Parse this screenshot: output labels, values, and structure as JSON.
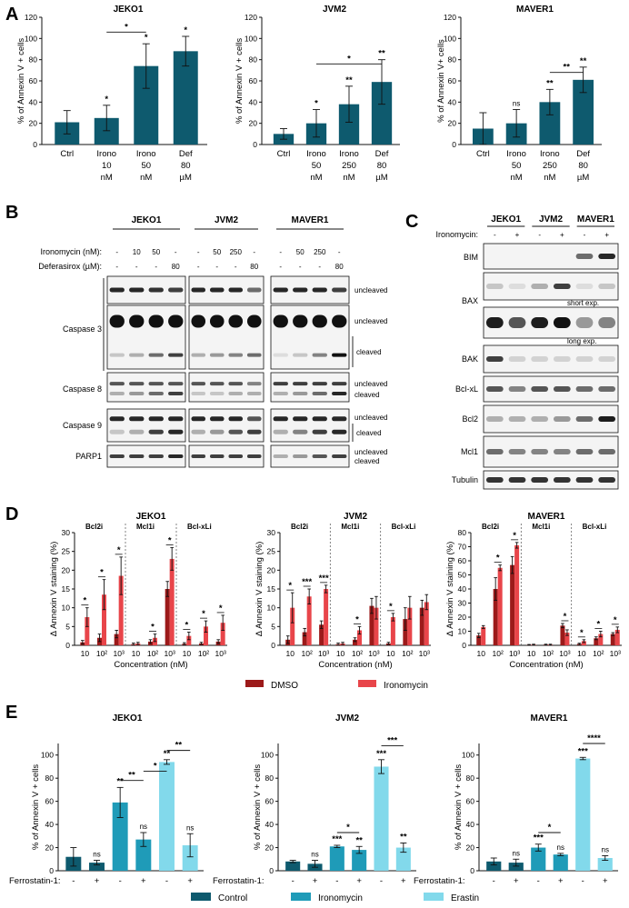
{
  "panels": {
    "A": {
      "letter": "A",
      "ylabel": "% of Annexin V + cells",
      "ylabel_maver": "% of Annexin V+ cells",
      "yticks": [
        "0",
        "20",
        "40",
        "60",
        "80",
        "100",
        "120"
      ],
      "color": "#0e5a6e"
    },
    "B": {
      "letter": "B",
      "lines": [
        "JEKO1",
        "JVM2",
        "MAVER1"
      ],
      "row_ironomycin": "Ironomycin (nM):",
      "row_deferasirox": "Deferasirox (µM):",
      "ironomycin_values": [
        [
          "-",
          "10",
          "50",
          "-"
        ],
        [
          "-",
          "50",
          "250",
          "-"
        ],
        [
          "-",
          "50",
          "250",
          "-"
        ]
      ],
      "deferasirox_values": [
        [
          "-",
          "-",
          "-",
          "80"
        ],
        [
          "-",
          "-",
          "-",
          "80"
        ],
        [
          "-",
          "-",
          "-",
          "80"
        ]
      ],
      "blots": [
        {
          "name": "Caspase 3",
          "labels": [
            "uncleaved",
            "uncleaved",
            "cleaved"
          ]
        },
        {
          "name": "Caspase 8",
          "labels": [
            "uncleaved",
            "cleaved"
          ]
        },
        {
          "name": "Caspase 9",
          "labels": [
            "uncleaved",
            "cleaved"
          ]
        },
        {
          "name": "PARP1",
          "labels": [
            "uncleaved",
            "cleaved"
          ]
        }
      ]
    },
    "C": {
      "letter": "C",
      "lines": [
        "JEKO1",
        "JVM2",
        "MAVER1"
      ],
      "row_ironomycin": "Ironomycin:",
      "signs": [
        "-",
        "+",
        "-",
        "+",
        "-",
        "+"
      ],
      "proteins": [
        "BIM",
        "BAX",
        "BAK",
        "Bcl-xL",
        "Bcl2",
        "Mcl1",
        "Tubulin"
      ],
      "short_exp": "short exp.",
      "long_exp": "long exp."
    },
    "D": {
      "letter": "D",
      "ylabel": "Δ Annexin V staining (%)",
      "xlabel": "Concentration (nM)",
      "groups": [
        "Bcl2i",
        "Mcl1i",
        "Bcl-xLi"
      ],
      "xticks": [
        "10",
        "10²",
        "10³"
      ],
      "legend": [
        {
          "name": "DMSO",
          "color": "#9c1a1a"
        },
        {
          "name": "Ironomycin",
          "color": "#e8454a"
        }
      ]
    },
    "E": {
      "letter": "E",
      "ylabel": "% of Annexin V + cells",
      "ferro_label": "Ferrostatin-1:",
      "signs": [
        "-",
        "+",
        "-",
        "+",
        "-",
        "+"
      ],
      "yticks": [
        "0",
        "20",
        "40",
        "60",
        "80",
        "100"
      ],
      "legend": [
        {
          "name": "Control",
          "color": "#0e5a6e"
        },
        {
          "name": "Ironomycin",
          "color": "#1f9bb8"
        },
        {
          "name": "Erastin",
          "color": "#82d9eb"
        }
      ]
    }
  },
  "chart_data": [
    {
      "type": "bar",
      "panel": "A",
      "title": "JEKO1",
      "categories": [
        "Ctrl",
        "Irono 10 nM",
        "Irono 50 nM",
        "Def 80 µM"
      ],
      "cat_lines": [
        [
          "Ctrl"
        ],
        [
          "Irono",
          "10",
          "nM"
        ],
        [
          "Irono",
          "50",
          "nM"
        ],
        [
          "Def",
          "80",
          "µM"
        ]
      ],
      "values": [
        21,
        25,
        74,
        88
      ],
      "errors": [
        11,
        12,
        21,
        14
      ],
      "sig": [
        "",
        "*",
        "*",
        "*"
      ],
      "brackets": [
        {
          "from": 1,
          "to": 2,
          "label": "*",
          "y": 106
        }
      ],
      "ylim": [
        0,
        120
      ]
    },
    {
      "type": "bar",
      "panel": "A",
      "title": "JVM2",
      "categories": [
        "Ctrl",
        "Irono 50 nM",
        "Irono 250 nM",
        "Def 80 µM"
      ],
      "cat_lines": [
        [
          "Ctrl"
        ],
        [
          "Irono",
          "50",
          "nM"
        ],
        [
          "Irono",
          "250",
          "nM"
        ],
        [
          "Def",
          "80",
          "µM"
        ]
      ],
      "values": [
        10,
        20,
        38,
        59
      ],
      "errors": [
        5,
        13,
        17,
        21
      ],
      "sig": [
        "",
        "*",
        "**",
        "**"
      ],
      "brackets": [
        {
          "from": 1,
          "to": 3,
          "label": "*",
          "y": 76
        }
      ],
      "ylim": [
        0,
        120
      ]
    },
    {
      "type": "bar",
      "panel": "A",
      "title": "MAVER1",
      "categories": [
        "Ctrl",
        "Irono 50 nM",
        "Irono 250 nM",
        "Def 80 µM"
      ],
      "cat_lines": [
        [
          "Ctrl"
        ],
        [
          "Irono",
          "50",
          "nM"
        ],
        [
          "Irono",
          "250",
          "nM"
        ],
        [
          "Def",
          "80",
          "µM"
        ]
      ],
      "values": [
        15,
        20,
        40,
        61
      ],
      "errors": [
        15,
        13,
        12,
        12
      ],
      "sig": [
        "",
        "ns",
        "**",
        "**"
      ],
      "brackets": [
        {
          "from": 2,
          "to": 3,
          "label": "**",
          "y": 68
        }
      ],
      "ylim": [
        0,
        120
      ]
    },
    {
      "type": "bar",
      "panel": "D",
      "title": "JEKO1",
      "yticks": [
        "0",
        "5",
        "10",
        "15",
        "20",
        "25",
        "30"
      ],
      "ylim": [
        0,
        30
      ],
      "series": [
        {
          "name": "DMSO",
          "values": [
            0.8,
            2,
            3,
            0.3,
            1,
            15,
            0.4,
            0.5,
            1
          ]
        },
        {
          "name": "Ironomycin",
          "values": [
            7.5,
            13.5,
            18.5,
            0.5,
            2,
            23,
            2.5,
            5,
            6
          ]
        }
      ],
      "errors": [
        [
          0.5,
          1,
          1,
          0.3,
          0.5,
          2,
          0.3,
          0.3,
          0.5
        ],
        [
          2.5,
          4,
          5,
          0.3,
          1,
          3,
          1,
          1.5,
          2
        ]
      ],
      "sig": [
        "*",
        "*",
        "*",
        "",
        "*",
        "*",
        "*",
        "*",
        "*"
      ]
    },
    {
      "type": "bar",
      "panel": "D",
      "title": "JVM2",
      "yticks": [
        "0",
        "5",
        "10",
        "15",
        "20",
        "25",
        "30"
      ],
      "ylim": [
        0,
        30
      ],
      "series": [
        {
          "name": "DMSO",
          "values": [
            1.5,
            3.5,
            5.5,
            0.3,
            1.5,
            10.5,
            0.5,
            7,
            10
          ]
        },
        {
          "name": "Ironomycin",
          "values": [
            10,
            13,
            15,
            0.5,
            4,
            10,
            7.5,
            10,
            11.5
          ]
        }
      ],
      "errors": [
        [
          1,
          1,
          1,
          0.3,
          0.5,
          2,
          0.3,
          3,
          2
        ],
        [
          4,
          2,
          1,
          0.3,
          1,
          3,
          1,
          3,
          2
        ]
      ],
      "sig": [
        "*",
        "***",
        "***",
        "",
        "*",
        "",
        "*",
        "",
        ""
      ]
    },
    {
      "type": "bar",
      "panel": "D",
      "title": "MAVER1",
      "yticks": [
        "0",
        "10",
        "20",
        "30",
        "40",
        "50",
        "60",
        "70",
        "80"
      ],
      "ylim": [
        0,
        80
      ],
      "series": [
        {
          "name": "DMSO",
          "values": [
            7,
            40,
            57,
            0.3,
            0.5,
            14,
            1,
            5,
            8
          ]
        },
        {
          "name": "Ironomycin",
          "values": [
            13,
            55,
            71,
            0.5,
            0.5,
            9,
            3,
            8,
            11
          ]
        }
      ],
      "errors": [
        [
          1.5,
          8,
          6,
          0.3,
          0.3,
          1.5,
          0.5,
          1,
          1
        ],
        [
          1,
          2,
          2,
          0.3,
          0.3,
          2,
          1,
          2,
          2
        ]
      ],
      "sig": [
        "",
        "*",
        "*",
        "",
        "",
        "*",
        "*",
        "*",
        "*"
      ]
    },
    {
      "type": "bar",
      "panel": "E",
      "title": "JEKO1",
      "values": [
        12,
        7,
        59,
        27,
        94,
        22
      ],
      "errors": [
        8,
        2,
        13,
        6,
        2,
        10
      ],
      "sig": [
        "",
        "ns",
        "**",
        "ns",
        "**",
        "ns"
      ],
      "brackets": [
        {
          "from": 2,
          "to": 3,
          "label": "**",
          "y": 78
        },
        {
          "from": 3,
          "to": 4,
          "label": "*",
          "y": 86
        },
        {
          "from": 4,
          "to": 5,
          "label": "**",
          "y": 104
        }
      ],
      "ylim": [
        0,
        110
      ]
    },
    {
      "type": "bar",
      "panel": "E",
      "title": "JVM2",
      "values": [
        8,
        6,
        21,
        18,
        90,
        20
      ],
      "errors": [
        1,
        3,
        1,
        3,
        6,
        4
      ],
      "sig": [
        "",
        "ns",
        "***",
        "**",
        "***",
        "**"
      ],
      "brackets": [
        {
          "from": 2,
          "to": 3,
          "label": "*",
          "y": 33
        },
        {
          "from": 4,
          "to": 5,
          "label": "***",
          "y": 108
        }
      ],
      "ylim": [
        0,
        110
      ]
    },
    {
      "type": "bar",
      "panel": "E",
      "title": "MAVER1",
      "values": [
        8,
        7,
        20,
        14,
        97,
        11
      ],
      "errors": [
        3,
        3,
        3,
        1,
        1,
        2
      ],
      "sig": [
        "",
        "ns",
        "***",
        "ns",
        "***",
        "ns"
      ],
      "brackets": [
        {
          "from": 2,
          "to": 3,
          "label": "*",
          "y": 33
        },
        {
          "from": 4,
          "to": 5,
          "label": "****",
          "y": 110
        }
      ],
      "ylim": [
        0,
        110
      ]
    }
  ]
}
